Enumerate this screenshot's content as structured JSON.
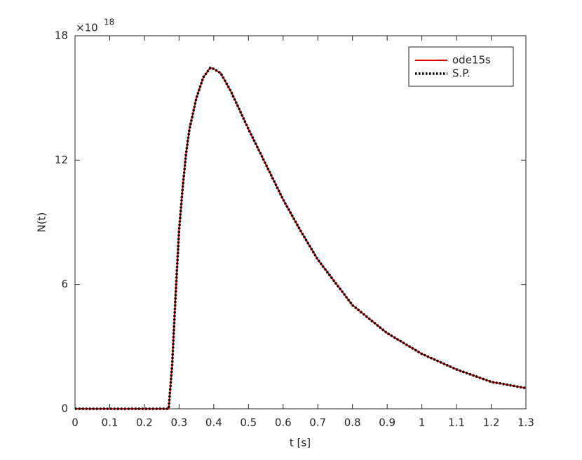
{
  "chart_data": {
    "type": "line",
    "x_label": "t [s]",
    "y_label": "N(t)",
    "y_multiplier": "×10",
    "y_exponent": "18",
    "x": [
      0,
      0.1,
      0.2,
      0.26,
      0.27,
      0.28,
      0.29,
      0.3,
      0.31,
      0.32,
      0.33,
      0.35,
      0.37,
      0.39,
      0.4,
      0.42,
      0.45,
      0.5,
      0.55,
      0.6,
      0.65,
      0.7,
      0.8,
      0.9,
      1.0,
      1.1,
      1.2,
      1.3
    ],
    "series": [
      {
        "name": "ode15s",
        "color": "#e00000",
        "style": "solid",
        "values": [
          0,
          0,
          0,
          0,
          0,
          2.1,
          5.5,
          8.6,
          10.6,
          12.3,
          13.5,
          15.0,
          16.0,
          16.45,
          16.4,
          16.2,
          15.3,
          13.5,
          11.8,
          10.1,
          8.6,
          7.2,
          5.0,
          3.65,
          2.65,
          1.9,
          1.3,
          1.0
        ]
      },
      {
        "name": "S.P.",
        "color": "#000000",
        "style": "dotted",
        "values": [
          0,
          0,
          0,
          0,
          0,
          2.1,
          5.5,
          8.6,
          10.6,
          12.3,
          13.5,
          15.0,
          16.0,
          16.45,
          16.4,
          16.2,
          15.3,
          13.5,
          11.8,
          10.1,
          8.6,
          7.2,
          5.0,
          3.65,
          2.65,
          1.9,
          1.3,
          1.0
        ]
      }
    ],
    "xlim": [
      0,
      1.3
    ],
    "xticks": [
      0,
      0.1,
      0.2,
      0.3,
      0.4,
      0.5,
      0.6,
      0.7,
      0.8,
      0.9,
      1,
      1.1,
      1.2,
      1.3
    ],
    "ylim": [
      0,
      18
    ],
    "yticks": [
      0,
      6,
      12,
      18
    ],
    "grid": false,
    "legend": "upper right"
  }
}
